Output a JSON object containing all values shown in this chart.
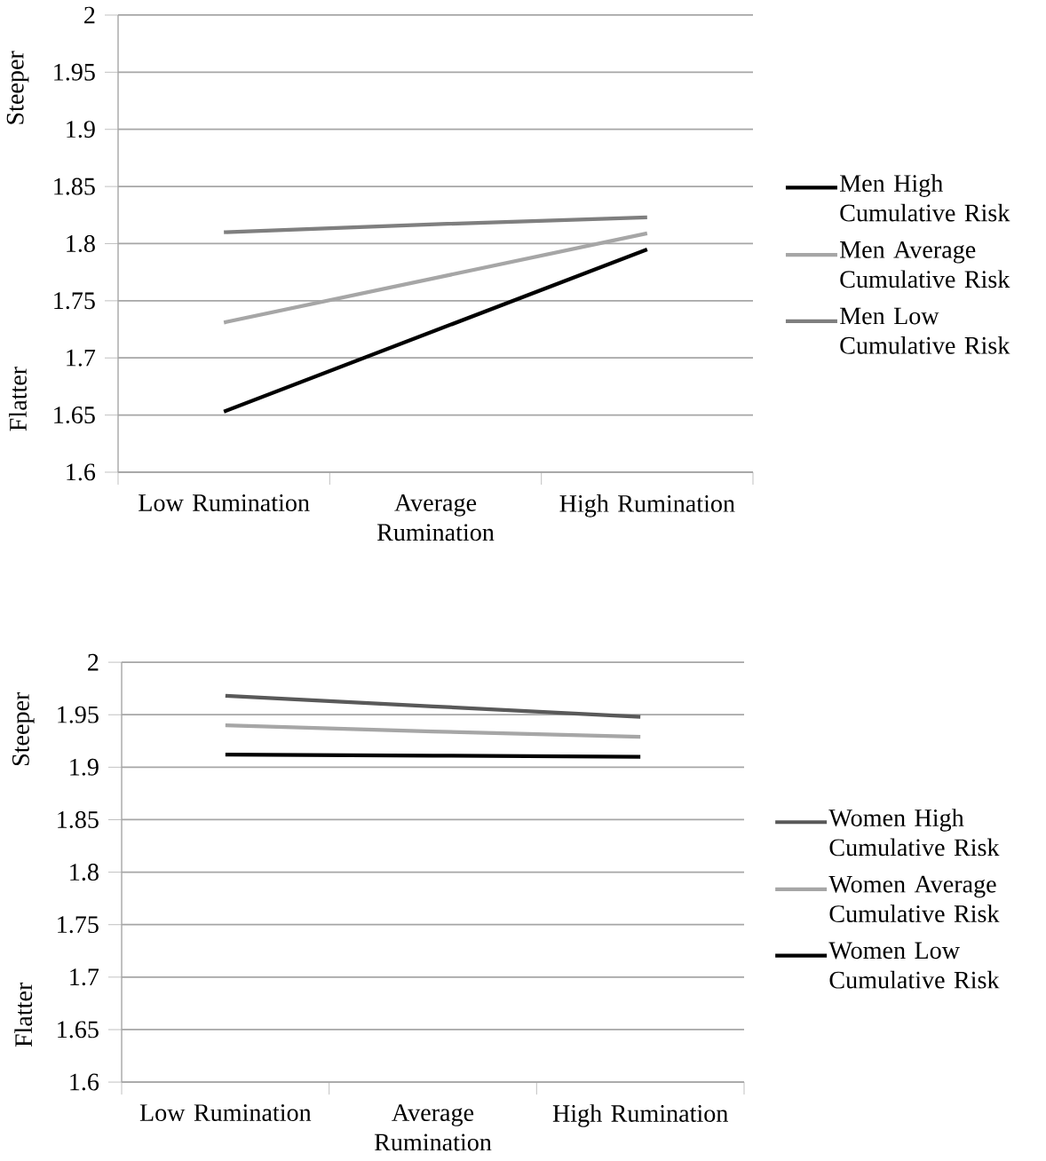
{
  "chart_data": [
    {
      "type": "line",
      "categories": [
        "Low Rumination",
        "Average Rumination",
        "High Rumination"
      ],
      "series": [
        {
          "name": "Men High Cumulative Risk",
          "color": "#000000",
          "values": [
            1.653,
            1.724,
            1.795
          ]
        },
        {
          "name": "Men Average Cumulative Risk",
          "color": "#a6a6a6",
          "values": [
            1.731,
            1.77,
            1.809
          ]
        },
        {
          "name": "Men Low Cumulative Risk",
          "color": "#7f7f7f",
          "values": [
            1.81,
            1.817,
            1.823
          ]
        }
      ],
      "ylim": [
        1.6,
        2
      ],
      "yticks": [
        1.6,
        1.65,
        1.7,
        1.75,
        1.8,
        1.85,
        1.9,
        1.95,
        2
      ],
      "grid": "y",
      "legend": "right",
      "marker": "none",
      "line_style": "solid",
      "annotations": [
        "Steeper",
        "Flatter"
      ]
    },
    {
      "type": "line",
      "categories": [
        "Low Rumination",
        "Average Rumination",
        "High Rumination"
      ],
      "series": [
        {
          "name": "Women High Cumulative Risk",
          "color": "#595959",
          "values": [
            1.968,
            1.958,
            1.948
          ]
        },
        {
          "name": "Women Average Cumulative Risk",
          "color": "#a6a6a6",
          "values": [
            1.94,
            1.934,
            1.929
          ]
        },
        {
          "name": "Women Low Cumulative Risk",
          "color": "#000000",
          "values": [
            1.912,
            1.911,
            1.91
          ]
        }
      ],
      "ylim": [
        1.6,
        2
      ],
      "yticks": [
        1.6,
        1.65,
        1.7,
        1.75,
        1.8,
        1.85,
        1.9,
        1.95,
        2
      ],
      "grid": "y",
      "legend": "right",
      "marker": "none",
      "line_style": "solid",
      "annotations": [
        "Steeper",
        "Flatter"
      ]
    }
  ]
}
